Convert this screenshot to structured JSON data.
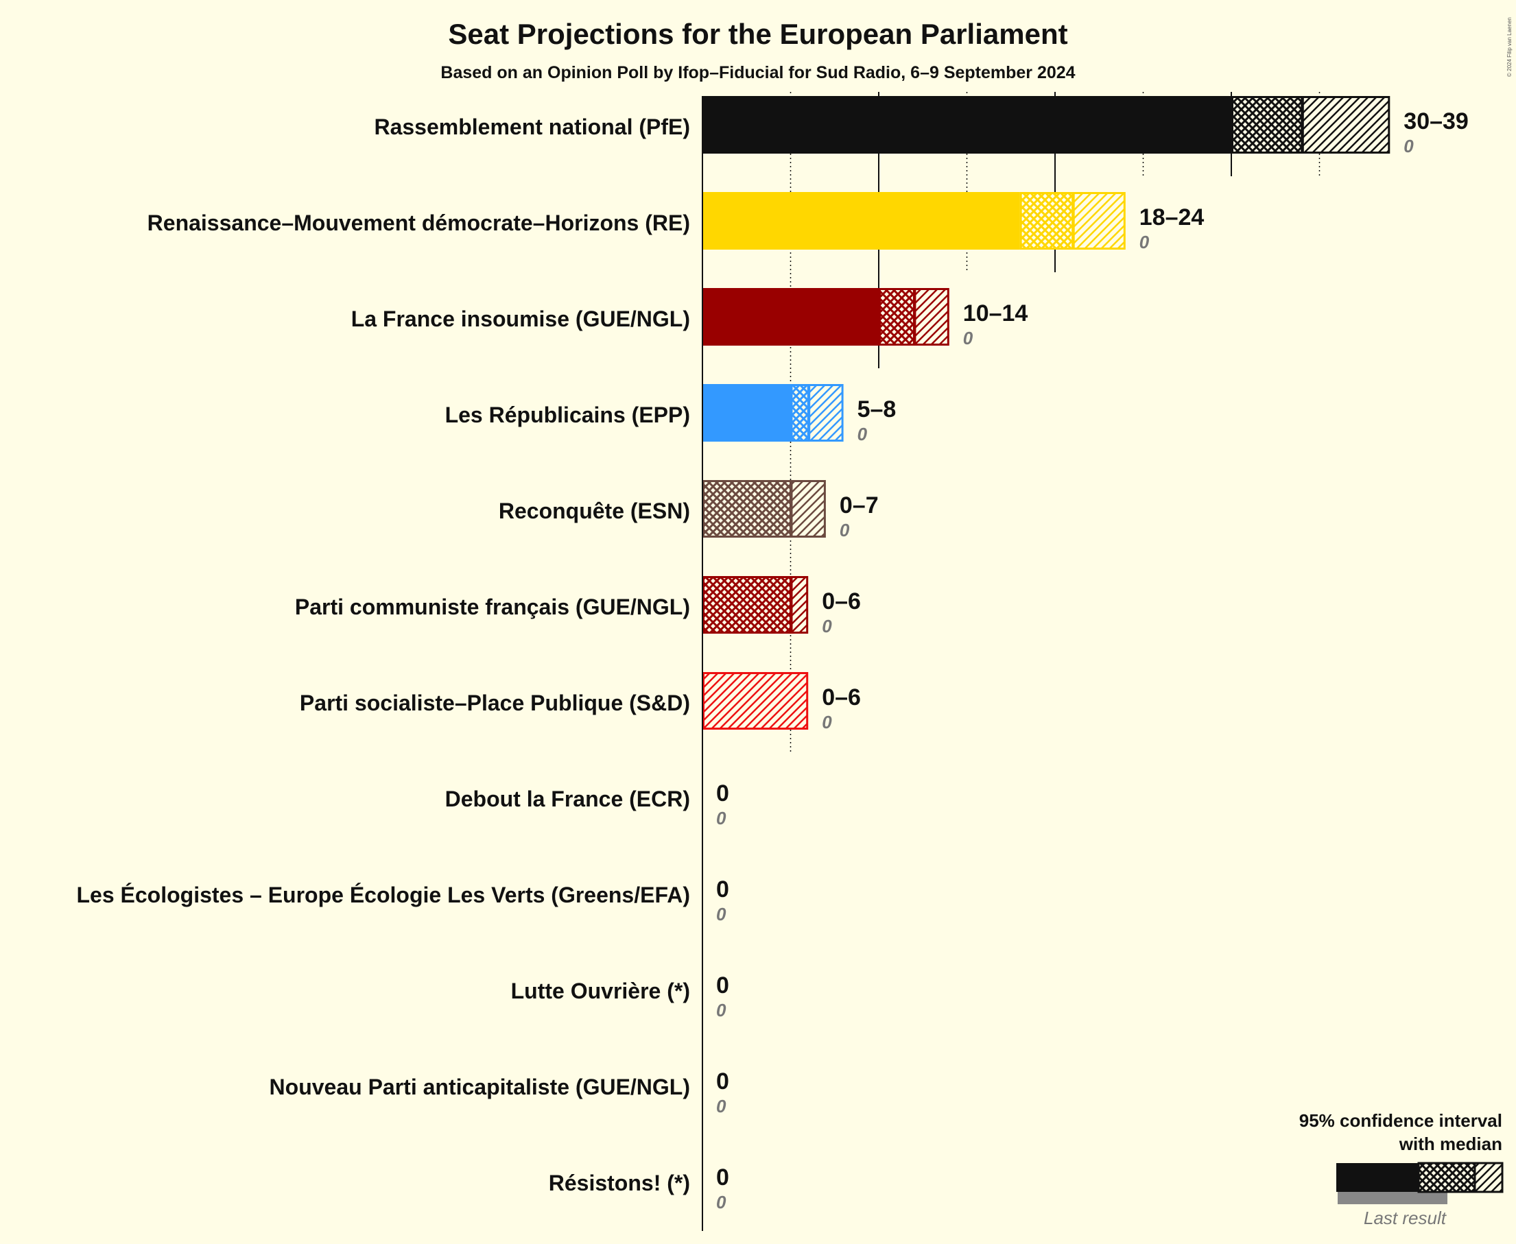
{
  "chart_data": {
    "type": "bar",
    "title": "Seat Projections for the European Parliament",
    "subtitle": "Based on an Opinion Poll by Ifop–Fiducial for Sud Radio, 6–9 September 2024",
    "copyright": "© 2024 Filip van Laenen",
    "xlim": [
      0,
      40
    ],
    "series": [
      {
        "name": "Rassemblement national (PfE)",
        "low": 30,
        "median": 34,
        "high": 39,
        "range_label": "30–39",
        "last_result": 0,
        "last_label": "0",
        "color": "#111111"
      },
      {
        "name": "Renaissance–Mouvement démocrate–Horizons (RE)",
        "low": 18,
        "median": 21,
        "high": 24,
        "range_label": "18–24",
        "last_result": 0,
        "last_label": "0",
        "color": "#ffd700"
      },
      {
        "name": "La France insoumise (GUE/NGL)",
        "low": 10,
        "median": 12,
        "high": 14,
        "range_label": "10–14",
        "last_result": 0,
        "last_label": "0",
        "color": "#990000"
      },
      {
        "name": "Les Républicains (EPP)",
        "low": 5,
        "median": 6,
        "high": 8,
        "range_label": "5–8",
        "last_result": 0,
        "last_label": "0",
        "color": "#3399ff"
      },
      {
        "name": "Reconquête (ESN)",
        "low": 0,
        "median": 5,
        "high": 7,
        "range_label": "0–7",
        "last_result": 0,
        "last_label": "0",
        "color": "#6b4a40"
      },
      {
        "name": "Parti communiste français (GUE/NGL)",
        "low": 0,
        "median": 5,
        "high": 6,
        "range_label": "0–6",
        "last_result": 0,
        "last_label": "0",
        "color": "#990000"
      },
      {
        "name": "Parti socialiste–Place Publique (S&D)",
        "low": 0,
        "median": 0,
        "high": 6,
        "range_label": "0–6",
        "last_result": 0,
        "last_label": "0",
        "color": "#ee1111"
      },
      {
        "name": "Debout la France (ECR)",
        "low": 0,
        "median": 0,
        "high": 0,
        "range_label": "0",
        "last_result": 0,
        "last_label": "0",
        "color": "#111111"
      },
      {
        "name": "Les Écologistes – Europe Écologie Les Verts (Greens/EFA)",
        "low": 0,
        "median": 0,
        "high": 0,
        "range_label": "0",
        "last_result": 0,
        "last_label": "0",
        "color": "#111111"
      },
      {
        "name": "Lutte Ouvrière (*)",
        "low": 0,
        "median": 0,
        "high": 0,
        "range_label": "0",
        "last_result": 0,
        "last_label": "0",
        "color": "#111111"
      },
      {
        "name": "Nouveau Parti anticapitaliste (GUE/NGL)",
        "low": 0,
        "median": 0,
        "high": 0,
        "range_label": "0",
        "last_result": 0,
        "last_label": "0",
        "color": "#111111"
      },
      {
        "name": "Résistons! (*)",
        "low": 0,
        "median": 0,
        "high": 0,
        "range_label": "0",
        "last_result": 0,
        "last_label": "0",
        "color": "#111111"
      }
    ],
    "legend": {
      "line1": "95% confidence interval",
      "line2": "with median",
      "last_result": "Last result",
      "placement": "bottom-right"
    }
  }
}
